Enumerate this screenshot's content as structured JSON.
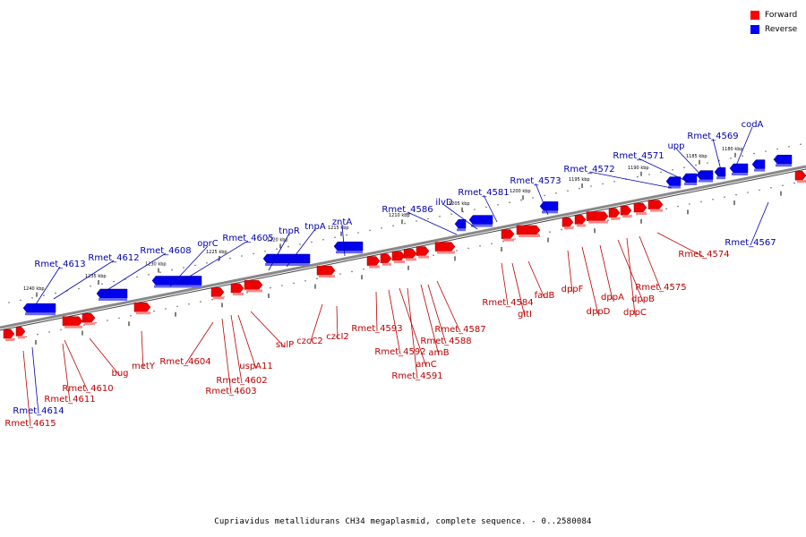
{
  "legend": {
    "forward_label": "Forward",
    "reverse_label": "Reverse",
    "forward_color": "#ff0000",
    "reverse_color": "#0000ff"
  },
  "colors": {
    "forward": "#ee0000",
    "reverse": "#0000ee",
    "label_forward": "#bb0000",
    "label_reverse": "#0000aa",
    "backbone": "#888888"
  },
  "caption": "Cupriavidus metallidurans CH34 megaplasmid, complete sequence. - 0..2580084",
  "ticks": [
    "1240 kbp",
    "1235 kbp",
    "1230 kbp",
    "1225 kbp",
    "1220 kbp",
    "1215 kbp",
    "1210 kbp",
    "1205 kbp",
    "1200 kbp",
    "1195 kbp",
    "1190 kbp",
    "1185 kbp",
    "1180 kbp"
  ],
  "reverse_genes": [
    "Rmet_4613",
    "Rmet_4612",
    "Rmet_4608",
    "oprC",
    "Rmet_4605",
    "tnpR",
    "tnpA",
    "zntA",
    "Rmet_4586",
    "ilvD",
    "Rmet_4581",
    "Rmet_4573",
    "Rmet_4572",
    "Rmet_4571",
    "upp",
    "Rmet_4569",
    "codA",
    "Rmet_4567",
    "Rmet_4614",
    "Rmet_4615"
  ],
  "forward_genes": [
    "Rmet_4610",
    "Rmet_4611",
    "bug",
    "metY",
    "Rmet_4604",
    "Rmet_4602",
    "Rmet_4603",
    "uspA11",
    "sulP",
    "czcC2",
    "czcI2",
    "Rmet_4593",
    "Rmet_4592",
    "arnC",
    "Rmet_4591",
    "arnB",
    "Rmet_4588",
    "Rmet_4587",
    "Rmet_4584",
    "gltI",
    "fadB",
    "dppF",
    "dppD",
    "dppA",
    "dppB",
    "dppC",
    "Rmet_4575",
    "Rmet_4574"
  ]
}
